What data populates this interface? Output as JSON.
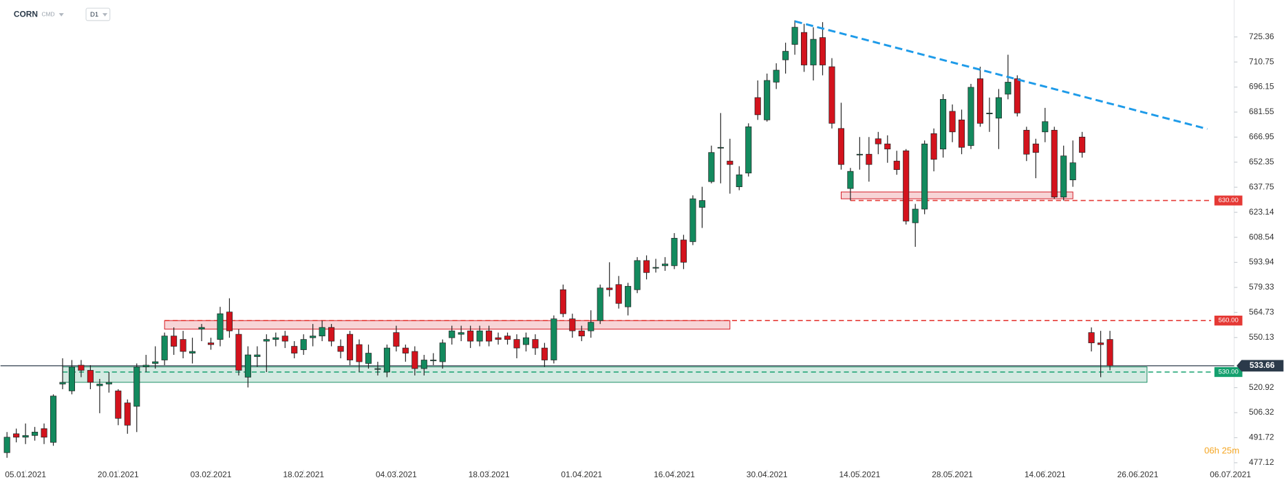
{
  "chart_data": {
    "type": "candlestick",
    "symbol": "CORN",
    "asset_class": "CMD",
    "timeframe": "D1",
    "timer": "06h 25m",
    "up_color": "#138a5e",
    "down_color": "#d3131d",
    "open": [
      483,
      494,
      492,
      493,
      497,
      489,
      523,
      519,
      534,
      531,
      522,
      523,
      519,
      512,
      510,
      533,
      535,
      537,
      551,
      549,
      541,
      555,
      547,
      549,
      565,
      552,
      527,
      539,
      548,
      549,
      551,
      545,
      543,
      550,
      551,
      556,
      545,
      552,
      546,
      535,
      532,
      530,
      553,
      544,
      542,
      532,
      537,
      536,
      550,
      552,
      554,
      548,
      554,
      550,
      551,
      549,
      546,
      549,
      544,
      537,
      578,
      561,
      554,
      554,
      560,
      579,
      581,
      568,
      578,
      595,
      591,
      592,
      592,
      607,
      606,
      626,
      641,
      661,
      653,
      638,
      646,
      690,
      677,
      699,
      712,
      721,
      728,
      709,
      725,
      708,
      672,
      637,
      657,
      657,
      666,
      663,
      653,
      659,
      617,
      625,
      669,
      660,
      682,
      677,
      662,
      701,
      681,
      678,
      692,
      701,
      671,
      663,
      670,
      671,
      632,
      642,
      667,
      553,
      547,
      549
    ],
    "high": [
      495,
      497,
      500,
      498,
      500,
      517,
      538,
      537,
      537,
      534,
      526,
      530,
      520,
      514,
      535,
      540,
      545,
      553,
      556,
      554,
      550,
      558,
      550,
      568,
      573,
      555,
      545,
      545,
      552,
      553,
      554,
      548,
      552,
      558,
      560,
      558,
      549,
      554,
      549,
      546,
      536,
      546,
      557,
      546,
      545,
      540,
      541,
      549,
      557,
      557,
      557,
      557,
      557,
      553,
      553,
      552,
      553,
      552,
      547,
      563,
      581,
      564,
      557,
      566,
      581,
      594,
      586,
      582,
      597,
      598,
      596,
      597,
      611,
      610,
      633,
      638,
      662,
      681,
      666,
      650,
      675,
      700,
      704,
      710,
      722,
      735,
      733,
      731,
      734,
      713,
      687,
      649,
      667,
      667,
      670,
      668,
      659,
      660,
      628,
      665,
      672,
      692,
      686,
      683,
      698,
      708,
      690,
      695,
      715,
      703,
      673,
      666,
      684,
      673,
      662,
      665,
      670,
      556,
      554,
      554
    ],
    "low": [
      480,
      489,
      488,
      490,
      488,
      487,
      520,
      517,
      527,
      520,
      506,
      518,
      499,
      494,
      495,
      530,
      532,
      534,
      540,
      538,
      535,
      548,
      543,
      545,
      550,
      528,
      521,
      533,
      530,
      545,
      544,
      538,
      540,
      545,
      548,
      545,
      538,
      534,
      530,
      532,
      528,
      527,
      542,
      536,
      528,
      528,
      534,
      532,
      546,
      548,
      544,
      545,
      545,
      546,
      546,
      538,
      542,
      540,
      533,
      535,
      562,
      550,
      548,
      550,
      558,
      574,
      567,
      563,
      576,
      584,
      588,
      589,
      590,
      590,
      604,
      614,
      640,
      640,
      634,
      636,
      644,
      677,
      676,
      695,
      704,
      715,
      705,
      700,
      703,
      672,
      648,
      630,
      648,
      641,
      657,
      652,
      645,
      616,
      603,
      622,
      647,
      655,
      664,
      657,
      660,
      673,
      670,
      660,
      689,
      679,
      653,
      643,
      664,
      631,
      630,
      638,
      655,
      542,
      527,
      531
    ],
    "close": [
      492,
      492,
      493,
      495,
      492,
      516,
      524,
      533,
      531,
      524,
      523,
      524,
      503,
      499,
      533,
      534,
      536,
      551,
      545,
      542,
      542,
      556,
      546,
      564,
      554,
      531,
      540,
      540,
      549,
      550,
      548,
      541,
      549,
      551,
      556,
      548,
      542,
      537,
      536,
      541,
      532,
      544,
      545,
      541,
      532,
      537,
      537,
      547,
      554,
      553,
      548,
      554,
      548,
      549,
      549,
      544,
      550,
      544,
      537,
      561,
      564,
      554,
      551,
      559,
      579,
      578,
      570,
      580,
      595,
      588,
      591,
      593,
      608,
      594,
      631,
      630,
      658,
      661,
      651,
      645,
      673,
      680,
      700,
      706,
      717,
      731,
      709,
      724,
      709,
      675,
      651,
      647,
      657,
      651,
      663,
      660,
      648,
      618,
      625,
      663,
      654,
      689,
      670,
      661,
      696,
      675,
      681,
      690,
      699,
      681,
      657,
      658,
      676,
      632,
      656,
      652,
      658,
      547,
      546,
      533.66
    ],
    "xlim": [
      -0.7,
      132.4
    ],
    "xticks": [
      {
        "value": 2,
        "label": "05.01.2021"
      },
      {
        "value": 12,
        "label": "20.01.2021"
      },
      {
        "value": 22,
        "label": "03.02.2021"
      },
      {
        "value": 32,
        "label": "18.02.2021"
      },
      {
        "value": 42,
        "label": "04.03.2021"
      },
      {
        "value": 52,
        "label": "18.03.2021"
      },
      {
        "value": 62,
        "label": "01.04.2021"
      },
      {
        "value": 72,
        "label": "16.04.2021"
      },
      {
        "value": 82,
        "label": "30.04.2021"
      },
      {
        "value": 92,
        "label": "14.05.2021"
      },
      {
        "value": 102,
        "label": "28.05.2021"
      },
      {
        "value": 112,
        "label": "14.06.2021"
      },
      {
        "value": 122,
        "label": "26.06.2021"
      },
      {
        "value": 132,
        "label": "06.07.2021"
      }
    ],
    "ylim": [
      472.8,
      746.9
    ],
    "yticks": [
      477.12,
      491.72,
      506.32,
      520.92,
      550.13,
      564.73,
      579.33,
      593.94,
      608.54,
      623.14,
      637.75,
      652.35,
      666.95,
      681.55,
      696.15,
      710.75,
      725.36
    ],
    "zones": [
      {
        "low": 555,
        "high": 560,
        "start": 17,
        "end": 78,
        "color": "#d3131d"
      },
      {
        "low": 631,
        "high": 635,
        "start": 90,
        "end": 115,
        "color": "#d3131d"
      },
      {
        "low": 524,
        "high": 533,
        "start": 6,
        "end": 123,
        "color": "#138a5e"
      }
    ],
    "levels": [
      {
        "value": 630,
        "label": "630.00",
        "start": 91,
        "color": "#e53935"
      },
      {
        "value": 560,
        "label": "560.00",
        "start": 17,
        "color": "#e53935"
      },
      {
        "value": 530,
        "label": "530.00",
        "start": 6,
        "color": "#14a06e"
      }
    ],
    "current": {
      "value": 533.66,
      "label": "533.66",
      "color": "#2b3a4a"
    },
    "trendline": {
      "start": [
        85,
        734.5
      ],
      "end": [
        129.5,
        671.7
      ],
      "color": "#1e9be9"
    }
  }
}
